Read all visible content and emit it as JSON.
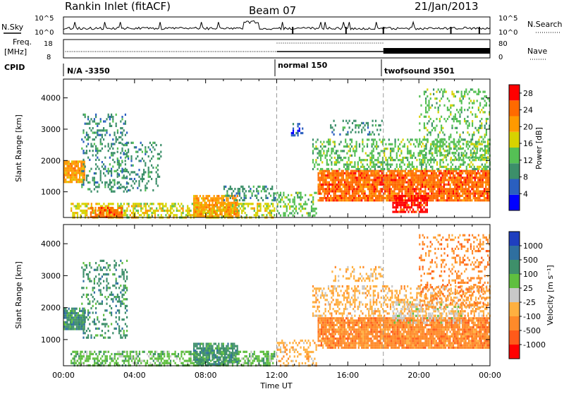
{
  "header": {
    "station": "Rankin Inlet (fitACF)",
    "beam": "Beam 07",
    "date": "21/Jan/2013"
  },
  "top_panels": {
    "nsky_label": "N.Sky",
    "nsky_ticks": [
      "10^5",
      "10^0"
    ],
    "nsearch_label": "N.Search",
    "nsearch_ticks": [
      "10^5",
      "10^0"
    ],
    "freq_label_1": "Freq.",
    "freq_label_2": "[MHz]",
    "freq_ticks": [
      "18",
      "8"
    ],
    "nave_label": "Nave",
    "nave_ticks": [
      "80",
      "0"
    ],
    "cpid_label": "CPID",
    "cpid_segments": [
      {
        "label": "N/A -3350",
        "start": "00:00",
        "end": "12:00"
      },
      {
        "label": "normal 150",
        "start": "12:00",
        "end": "18:00"
      },
      {
        "label": "twofsound 3501",
        "start": "18:00",
        "end": "24:00"
      }
    ]
  },
  "chart_data": [
    {
      "type": "heatmap",
      "name": "power",
      "x_unit": "Time UT",
      "ylabel": "Slant Range [km]",
      "x_ticks": [
        "00:00",
        "04:00",
        "08:00",
        "12:00",
        "16:00",
        "20:00",
        "00:00"
      ],
      "y_ticks": [
        1000,
        2000,
        3000,
        4000
      ],
      "xlim_hours": [
        0,
        24
      ],
      "ylim_km": [
        180,
        4600
      ],
      "colorbar_label": "Power [dB]",
      "colorbar_ticks": [
        4,
        8,
        12,
        16,
        20,
        24,
        28
      ],
      "colorbar_range": [
        0,
        30
      ],
      "colorbar_colors": [
        "#0000ff",
        "#2a5fbf",
        "#3c8f6a",
        "#55c055",
        "#d7d200",
        "#ff9a00",
        "#ff6a00",
        "#ff0000"
      ],
      "scatter_regions": [
        {
          "t0": 0.0,
          "t1": 1.2,
          "r0": 1300,
          "r1": 2000,
          "p": 0.9,
          "level": 20
        },
        {
          "t0": 1.0,
          "t1": 3.6,
          "r0": 1000,
          "r1": 3500,
          "p": 0.28,
          "level": 8
        },
        {
          "t0": 3.0,
          "t1": 5.5,
          "r0": 1000,
          "r1": 2600,
          "p": 0.25,
          "level": 10
        },
        {
          "t0": 0.4,
          "t1": 11.9,
          "r0": 180,
          "r1": 650,
          "p": 0.55,
          "level": 16
        },
        {
          "t0": 1.5,
          "t1": 3.3,
          "r0": 180,
          "r1": 520,
          "p": 0.8,
          "level": 24
        },
        {
          "t0": 7.3,
          "t1": 9.8,
          "r0": 180,
          "r1": 900,
          "p": 0.75,
          "level": 22
        },
        {
          "t0": 9.0,
          "t1": 12.0,
          "r0": 700,
          "r1": 1200,
          "p": 0.35,
          "level": 8
        },
        {
          "t0": 12.0,
          "t1": 14.3,
          "r0": 180,
          "r1": 1000,
          "p": 0.35,
          "level": 12
        },
        {
          "t0": 14.3,
          "t1": 24.0,
          "r0": 700,
          "r1": 1700,
          "p": 0.9,
          "level": 27
        },
        {
          "t0": 14.0,
          "t1": 24.0,
          "r0": 1700,
          "r1": 2700,
          "p": 0.4,
          "level": 14
        },
        {
          "t0": 18.5,
          "t1": 20.5,
          "r0": 300,
          "r1": 900,
          "p": 0.75,
          "level": 28
        },
        {
          "t0": 20.0,
          "t1": 24.0,
          "r0": 2000,
          "r1": 4300,
          "p": 0.25,
          "level": 12
        },
        {
          "t0": 15.0,
          "t1": 18.0,
          "r0": 2800,
          "r1": 3300,
          "p": 0.25,
          "level": 10
        },
        {
          "t0": 12.8,
          "t1": 13.5,
          "r0": 2800,
          "r1": 3200,
          "p": 0.45,
          "level": 6
        }
      ]
    },
    {
      "type": "heatmap",
      "name": "velocity",
      "x_unit": "Time UT",
      "ylabel": "Slant Range [km]",
      "x_ticks": [
        "00:00",
        "04:00",
        "08:00",
        "12:00",
        "16:00",
        "20:00",
        "00:00"
      ],
      "y_ticks": [
        1000,
        2000,
        3000,
        4000
      ],
      "xlim_hours": [
        0,
        24
      ],
      "ylim_km": [
        180,
        4600
      ],
      "colorbar_label": "Velocity [m s⁻¹]",
      "colorbar_ticks": [
        "1000",
        "500",
        "100",
        "25",
        "-25",
        "-100",
        "-500",
        "-1000"
      ],
      "colorbar_colors": [
        "#1f3fbf",
        "#2f6f9f",
        "#3e8f6a",
        "#5fbf3f",
        "#c8c8c8",
        "#ffb040",
        "#ff8a2a",
        "#ff5a1a",
        "#ff0000"
      ],
      "scatter_regions": [
        {
          "t0": 0.0,
          "t1": 1.2,
          "r0": 1300,
          "r1": 2000,
          "p": 0.9,
          "level": 2
        },
        {
          "t0": 1.0,
          "t1": 3.6,
          "r0": 1000,
          "r1": 3500,
          "p": 0.28,
          "level": 2
        },
        {
          "t0": 0.4,
          "t1": 11.9,
          "r0": 180,
          "r1": 650,
          "p": 0.55,
          "level": 3
        },
        {
          "t0": 7.3,
          "t1": 9.8,
          "r0": 180,
          "r1": 900,
          "p": 0.75,
          "level": 2
        },
        {
          "t0": 12.0,
          "t1": 14.3,
          "r0": 180,
          "r1": 1000,
          "p": 0.35,
          "level": 5
        },
        {
          "t0": 14.3,
          "t1": 24.0,
          "r0": 700,
          "r1": 1700,
          "p": 0.9,
          "level": 6
        },
        {
          "t0": 14.0,
          "t1": 24.0,
          "r0": 1700,
          "r1": 2700,
          "p": 0.4,
          "level": 5
        },
        {
          "t0": 18.5,
          "t1": 22.5,
          "r0": 1500,
          "r1": 2200,
          "p": 0.35,
          "level": 4
        },
        {
          "t0": 20.0,
          "t1": 24.0,
          "r0": 2000,
          "r1": 4300,
          "p": 0.25,
          "level": 6
        },
        {
          "t0": 15.0,
          "t1": 18.0,
          "r0": 2800,
          "r1": 3300,
          "p": 0.25,
          "level": 5
        }
      ]
    }
  ],
  "xlabel": "Time UT"
}
